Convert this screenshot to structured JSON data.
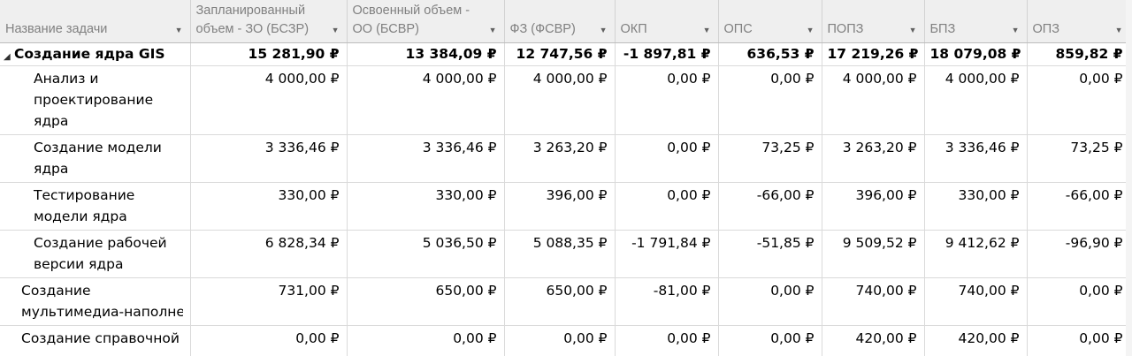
{
  "columns": [
    {
      "label": "Название задачи"
    },
    {
      "label": "Запланированный объем - ЗО (БСЗР)"
    },
    {
      "label": "Освоенный объем - ОО (БСВР)"
    },
    {
      "label": "ФЗ (ФСВР)"
    },
    {
      "label": "ОКП"
    },
    {
      "label": "ОПС"
    },
    {
      "label": "ПОПЗ"
    },
    {
      "label": "БПЗ"
    },
    {
      "label": "ОПЗ"
    }
  ],
  "summary_row": {
    "toggle": "◢",
    "name": "Создание ядра GIS",
    "values": [
      "15 281,90 ₽",
      "13 384,09 ₽",
      "12 747,56 ₽",
      "-1 897,81 ₽",
      "636,53 ₽",
      "17 219,26 ₽",
      "18 079,08 ₽",
      "859,82 ₽"
    ]
  },
  "rows": [
    {
      "name": "Анализ и проектирование ядра",
      "level": 2,
      "values": [
        "4 000,00 ₽",
        "4 000,00 ₽",
        "4 000,00 ₽",
        "0,00 ₽",
        "0,00 ₽",
        "4 000,00 ₽",
        "4 000,00 ₽",
        "0,00 ₽"
      ]
    },
    {
      "name": "Создание модели ядра",
      "level": 2,
      "values": [
        "3 336,46 ₽",
        "3 336,46 ₽",
        "3 263,20 ₽",
        "0,00 ₽",
        "73,25 ₽",
        "3 263,20 ₽",
        "3 336,46 ₽",
        "73,25 ₽"
      ]
    },
    {
      "name": "Тестирование модели ядра",
      "level": 2,
      "values": [
        "330,00 ₽",
        "330,00 ₽",
        "396,00 ₽",
        "0,00 ₽",
        "-66,00 ₽",
        "396,00 ₽",
        "330,00 ₽",
        "-66,00 ₽"
      ]
    },
    {
      "name": "Создание рабочей версии ядра",
      "level": 2,
      "values": [
        "6 828,34 ₽",
        "5 036,50 ₽",
        "5 088,35 ₽",
        "-1 791,84 ₽",
        "-51,85 ₽",
        "9 509,52 ₽",
        "9 412,62 ₽",
        "-96,90 ₽"
      ]
    },
    {
      "name_line1": "Создание",
      "name_line2": "мультимедиа-наполнения",
      "level": 1,
      "values": [
        "731,00 ₽",
        "650,00 ₽",
        "650,00 ₽",
        "-81,00 ₽",
        "0,00 ₽",
        "740,00 ₽",
        "740,00 ₽",
        "0,00 ₽"
      ]
    },
    {
      "name": "Создание справочной системы",
      "level": 1,
      "values": [
        "0,00 ₽",
        "0,00 ₽",
        "0,00 ₽",
        "0,00 ₽",
        "0,00 ₽",
        "420,00 ₽",
        "420,00 ₽",
        "0,00 ₽"
      ]
    }
  ],
  "icons": {
    "dropdown": "chevron-down-icon",
    "collapse": "collapse-triangle-icon"
  }
}
